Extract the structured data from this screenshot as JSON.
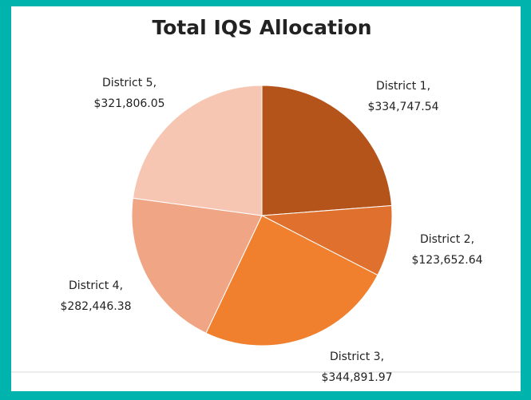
{
  "chart_data": {
    "type": "pie",
    "title": "Total IQS Allocation",
    "categories": [
      "District 1",
      "District 2",
      "District 3",
      "District 4",
      "District 5"
    ],
    "values": [
      334747.54,
      123652.64,
      344891.97,
      282446.38,
      321806.05
    ],
    "value_labels": [
      "$334,747.54",
      "$123,652.64",
      "$344,891.97",
      "$282,446.38",
      "$321,806.05"
    ],
    "label_separator": ",",
    "colors": [
      "#b4541b",
      "#e0702d",
      "#f07f2e",
      "#f0a585",
      "#f6c6b3"
    ]
  }
}
